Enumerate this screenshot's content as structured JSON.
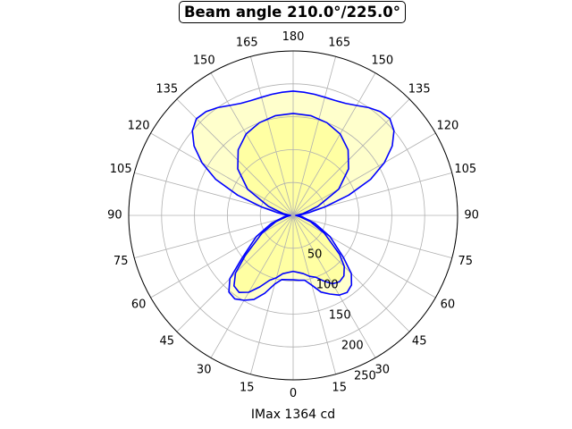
{
  "chart_data": {
    "type": "polar-area",
    "title": "Beam angle 210.0°/225.0°",
    "xlabel": "IMax 1364 cd",
    "angle_tick_labels": [
      {
        "angle": 0,
        "label": "0"
      },
      {
        "angle": 15,
        "label": "15"
      },
      {
        "angle": 30,
        "label": "30"
      },
      {
        "angle": 45,
        "label": "45"
      },
      {
        "angle": 60,
        "label": "60"
      },
      {
        "angle": 75,
        "label": "75"
      },
      {
        "angle": 90,
        "label": "90"
      },
      {
        "angle": 105,
        "label": "105"
      },
      {
        "angle": 120,
        "label": "120"
      },
      {
        "angle": 135,
        "label": "135"
      },
      {
        "angle": 150,
        "label": "150"
      },
      {
        "angle": 165,
        "label": "165"
      },
      {
        "angle": 180,
        "label": "180"
      },
      {
        "angle": 195,
        "label": "165"
      },
      {
        "angle": 210,
        "label": "150"
      },
      {
        "angle": 225,
        "label": "135"
      },
      {
        "angle": 240,
        "label": "120"
      },
      {
        "angle": 255,
        "label": "105"
      },
      {
        "angle": 270,
        "label": "90"
      },
      {
        "angle": 285,
        "label": "75"
      },
      {
        "angle": 300,
        "label": "60"
      },
      {
        "angle": 315,
        "label": "45"
      },
      {
        "angle": 330,
        "label": "30"
      },
      {
        "angle": 345,
        "label": "15"
      }
    ],
    "radial_ticks": [
      50,
      100,
      150,
      200,
      250
    ],
    "radial_max": 250,
    "grid": true,
    "fill_color": "#ffff00",
    "line_color": "#0000ff",
    "series": [
      {
        "points": [
          [
            0,
            98
          ],
          [
            10,
            99
          ],
          [
            15,
            108
          ],
          [
            20,
            126
          ],
          [
            25,
            141
          ],
          [
            30,
            149
          ],
          [
            35,
            155
          ],
          [
            40,
            152
          ],
          [
            45,
            136
          ],
          [
            50,
            102
          ],
          [
            60,
            65
          ],
          [
            70,
            35
          ],
          [
            80,
            15
          ],
          [
            90,
            8
          ],
          [
            100,
            25
          ],
          [
            105,
            50
          ],
          [
            110,
            90
          ],
          [
            115,
            130
          ],
          [
            120,
            160
          ],
          [
            125,
            184
          ],
          [
            130,
            200
          ],
          [
            135,
            208
          ],
          [
            140,
            206
          ],
          [
            145,
            200
          ],
          [
            150,
            193
          ],
          [
            155,
            188
          ],
          [
            160,
            186
          ],
          [
            165,
            186
          ],
          [
            170,
            187
          ],
          [
            175,
            188
          ],
          [
            180,
            189
          ],
          [
            185,
            188
          ],
          [
            190,
            187
          ],
          [
            195,
            186
          ],
          [
            200,
            186
          ],
          [
            205,
            188
          ],
          [
            210,
            193
          ],
          [
            215,
            200
          ],
          [
            220,
            206
          ],
          [
            225,
            208
          ],
          [
            230,
            200
          ],
          [
            235,
            184
          ],
          [
            240,
            160
          ],
          [
            245,
            130
          ],
          [
            250,
            90
          ],
          [
            255,
            50
          ],
          [
            260,
            25
          ],
          [
            270,
            8
          ],
          [
            280,
            15
          ],
          [
            290,
            35
          ],
          [
            300,
            65
          ],
          [
            310,
            100
          ],
          [
            315,
            125
          ],
          [
            320,
            138
          ],
          [
            325,
            143
          ],
          [
            330,
            140
          ],
          [
            335,
            132
          ],
          [
            340,
            124
          ],
          [
            345,
            110
          ],
          [
            350,
            100
          ],
          [
            355,
            99
          ]
        ]
      },
      {
        "points": [
          [
            0,
            85
          ],
          [
            10,
            90
          ],
          [
            15,
            98
          ],
          [
            20,
            105
          ],
          [
            25,
            120
          ],
          [
            30,
            135
          ],
          [
            35,
            143
          ],
          [
            40,
            140
          ],
          [
            45,
            124
          ],
          [
            50,
            95
          ],
          [
            60,
            55
          ],
          [
            70,
            28
          ],
          [
            80,
            10
          ],
          [
            90,
            4
          ],
          [
            100,
            15
          ],
          [
            110,
            40
          ],
          [
            120,
            80
          ],
          [
            130,
            110
          ],
          [
            140,
            130
          ],
          [
            150,
            143
          ],
          [
            160,
            150
          ],
          [
            170,
            154
          ],
          [
            180,
            155
          ],
          [
            190,
            154
          ],
          [
            200,
            150
          ],
          [
            210,
            143
          ],
          [
            220,
            130
          ],
          [
            230,
            110
          ],
          [
            240,
            80
          ],
          [
            250,
            40
          ],
          [
            260,
            15
          ],
          [
            270,
            4
          ],
          [
            280,
            10
          ],
          [
            290,
            28
          ],
          [
            300,
            55
          ],
          [
            310,
            92
          ],
          [
            315,
            110
          ],
          [
            320,
            120
          ],
          [
            325,
            123
          ],
          [
            330,
            120
          ],
          [
            335,
            110
          ],
          [
            340,
            100
          ],
          [
            345,
            96
          ],
          [
            350,
            90
          ],
          [
            355,
            87
          ]
        ]
      }
    ]
  }
}
